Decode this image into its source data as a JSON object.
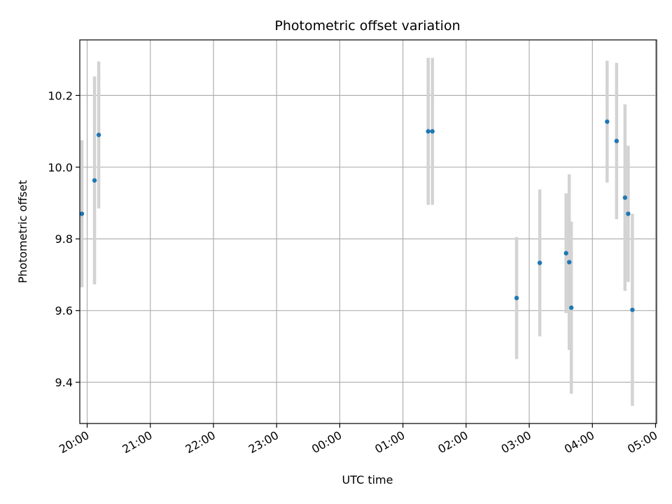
{
  "chart_data": {
    "type": "scatter",
    "title": "Photometric offset variation",
    "xlabel": "UTC time",
    "ylabel": "Photometric offset",
    "xlim": [
      "19:53",
      "05:01"
    ],
    "ylim": [
      9.285,
      10.355
    ],
    "x_ticks": [
      "20:00",
      "21:00",
      "22:00",
      "23:00",
      "00:00",
      "01:00",
      "02:00",
      "03:00",
      "04:00",
      "05:00"
    ],
    "y_ticks": [
      9.4,
      9.6,
      9.8,
      10.0,
      10.2
    ],
    "grid": true,
    "colors": {
      "point": "#1f77b4",
      "error_bar": "#d3d3d3",
      "grid": "#b0b0b0"
    },
    "points": [
      {
        "x": "19:55",
        "y": 9.87,
        "err": 0.205
      },
      {
        "x": "20:07",
        "y": 9.963,
        "err": 0.29
      },
      {
        "x": "20:11",
        "y": 10.09,
        "err": 0.205
      },
      {
        "x": "01:24",
        "y": 10.1,
        "err": 0.205
      },
      {
        "x": "01:28",
        "y": 10.1,
        "err": 0.205
      },
      {
        "x": "02:48",
        "y": 9.635,
        "err": 0.17
      },
      {
        "x": "03:10",
        "y": 9.733,
        "err": 0.205
      },
      {
        "x": "03:35",
        "y": 9.76,
        "err": 0.167
      },
      {
        "x": "03:38",
        "y": 9.735,
        "err": 0.245
      },
      {
        "x": "03:40",
        "y": 9.608,
        "err": 0.24
      },
      {
        "x": "04:14",
        "y": 10.127,
        "err": 0.17
      },
      {
        "x": "04:23",
        "y": 10.073,
        "err": 0.218
      },
      {
        "x": "04:31",
        "y": 9.915,
        "err": 0.26
      },
      {
        "x": "04:34",
        "y": 9.87,
        "err": 0.19
      },
      {
        "x": "04:38",
        "y": 9.602,
        "err": 0.268
      }
    ]
  }
}
